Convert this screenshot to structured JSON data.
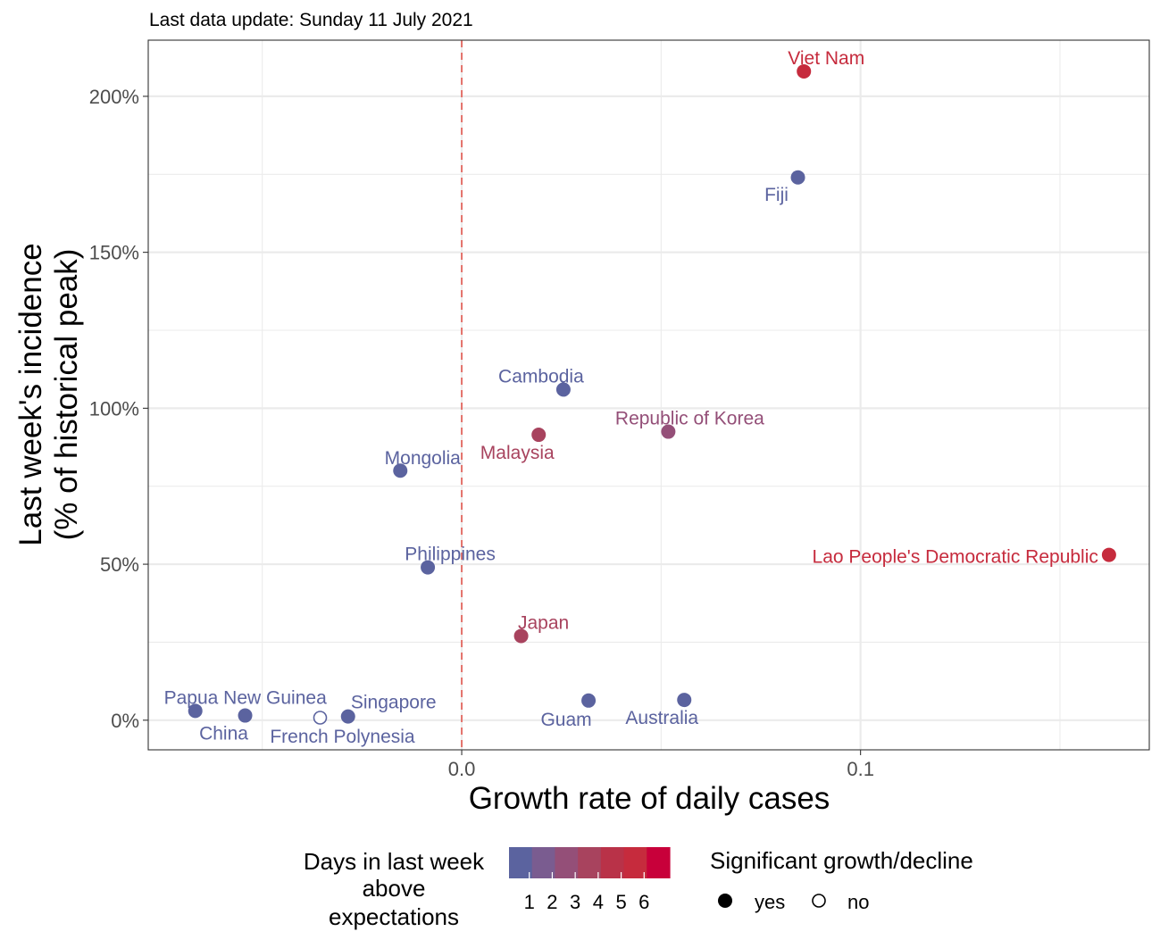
{
  "subtitle": "Last data update: Sunday 11 July 2021",
  "chart_data": {
    "type": "scatter",
    "xlabel": "Growth rate of daily cases",
    "ylabel_lines": [
      "Last week's incidence",
      "(% of historical peak)"
    ],
    "xlim": [
      -0.0786,
      0.1724
    ],
    "ylim": [
      -9.5,
      218
    ],
    "x_ticks": [
      0.0,
      0.1
    ],
    "x_tick_labels": [
      "0.0",
      "0.1"
    ],
    "y_ticks": [
      0,
      50,
      100,
      150,
      200
    ],
    "y_tick_labels": [
      "0%",
      "50%",
      "100%",
      "150%",
      "200%"
    ],
    "reference_line_x": 0,
    "grid": true,
    "colors": {
      "days": [
        "#5b639f",
        "#7a5c90",
        "#944f78",
        "#a8435e",
        "#b93248",
        "#c62b3d",
        "#c8003a"
      ],
      "reference_line": "#e4736c",
      "panel_border": "#333333",
      "grid": "#ebebeb",
      "text_axis": "#4d4d4d"
    },
    "points": [
      {
        "name": "Viet Nam",
        "x": 0.0858,
        "y": 208,
        "days": 5,
        "significant": true
      },
      {
        "name": "Fiji",
        "x": 0.0843,
        "y": 174,
        "days": 0,
        "significant": true
      },
      {
        "name": "Cambodia",
        "x": 0.0255,
        "y": 106,
        "days": 0,
        "significant": true
      },
      {
        "name": "Republic of Korea",
        "x": 0.0518,
        "y": 92.5,
        "days": 2,
        "significant": true
      },
      {
        "name": "Malaysia",
        "x": 0.0193,
        "y": 91.5,
        "days": 3,
        "significant": true
      },
      {
        "name": "Mongolia",
        "x": -0.0154,
        "y": 80,
        "days": 0,
        "significant": true
      },
      {
        "name": "Lao People's Democratic Republic",
        "x": 0.1623,
        "y": 53,
        "days": 5,
        "significant": true
      },
      {
        "name": "Philippines",
        "x": -0.0085,
        "y": 49,
        "days": 0,
        "significant": true
      },
      {
        "name": "Japan",
        "x": 0.0149,
        "y": 27,
        "days": 3,
        "significant": true
      },
      {
        "name": "Papua New Guinea",
        "x": -0.0668,
        "y": 3,
        "days": 0,
        "significant": true
      },
      {
        "name": "China",
        "x": -0.0543,
        "y": 1.5,
        "days": 0,
        "significant": true
      },
      {
        "name": "French Polynesia",
        "x": -0.0355,
        "y": 0.8,
        "days": 0,
        "significant": false
      },
      {
        "name": "Singapore",
        "x": -0.0285,
        "y": 1.2,
        "days": 0,
        "significant": true
      },
      {
        "name": "Guam",
        "x": 0.0318,
        "y": 6.3,
        "days": 0,
        "significant": true
      },
      {
        "name": "Australia",
        "x": 0.0558,
        "y": 6.5,
        "days": 0,
        "significant": true
      }
    ],
    "legend": {
      "placement": "bottom",
      "color_title_lines": [
        "Days in last week",
        "above",
        "expectations"
      ],
      "color_ticks": [
        "1",
        "2",
        "3",
        "4",
        "5",
        "6"
      ],
      "shape_title": "Significant growth/decline",
      "shape_entries": [
        {
          "label": "yes",
          "filled": true
        },
        {
          "label": "no",
          "filled": false
        }
      ]
    }
  }
}
